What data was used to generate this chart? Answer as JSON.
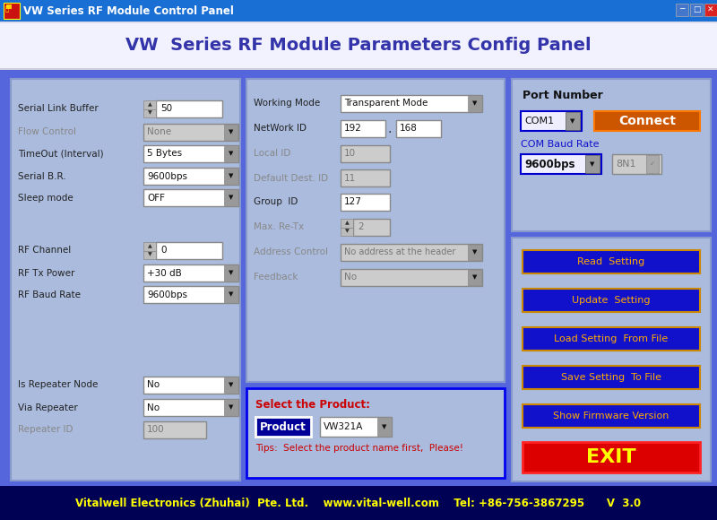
{
  "title_bar": "VW Series RF Module Control Panel",
  "header_text": "VW  Series RF Module Parameters Config Panel",
  "footer_text": "Vitalwell Electronics (Zhuhai)  Pte. Ltd.    www.vital-well.com    Tel: +86-756-3867295      V  3.0",
  "right_buttons": [
    "Read  Setting",
    "Update  Setting",
    "Load Setting  From File",
    "Save Setting  To File",
    "Show Firmware Version"
  ],
  "connect_text": "Connect",
  "port_label": "Port Number",
  "com_label": "COM Baud Rate",
  "com1_value": "COM1",
  "baud_value": "9600bps",
  "baud2_value": "8N1",
  "product_label": "Select the Product:",
  "product_btn": "Product",
  "product_value": "VW321A",
  "product_tip": "Tips:  Select the product name first,  Please!",
  "exit_text": "EXIT",
  "titlebar_bg": "#1a6fd4",
  "header_bg": "#f0f0f8",
  "header_text_color": "#3333aa",
  "main_bg": "#5566dd",
  "left_panel_bg": "#aabbdd",
  "mid_panel_bg": "#aabbdd",
  "right_panel_bg": "#aabbdd",
  "footer_bg": "#000055",
  "footer_color": "#ffff00",
  "btn_bg": "#1111cc",
  "btn_border": "#cc8800",
  "btn_text": "#ffaa00",
  "connect_bg": "#cc5500",
  "exit_bg": "#dd0000",
  "exit_text_color": "#ffff00",
  "field_bg": "#ffffff",
  "field_disabled_bg": "#cccccc",
  "field_border": "#888888",
  "combo_arrow_bg": "#999999",
  "port_combo_bg": "#eeeeff",
  "baud_combo_bg": "#eeeeff",
  "product_box_border": "#0000ee"
}
